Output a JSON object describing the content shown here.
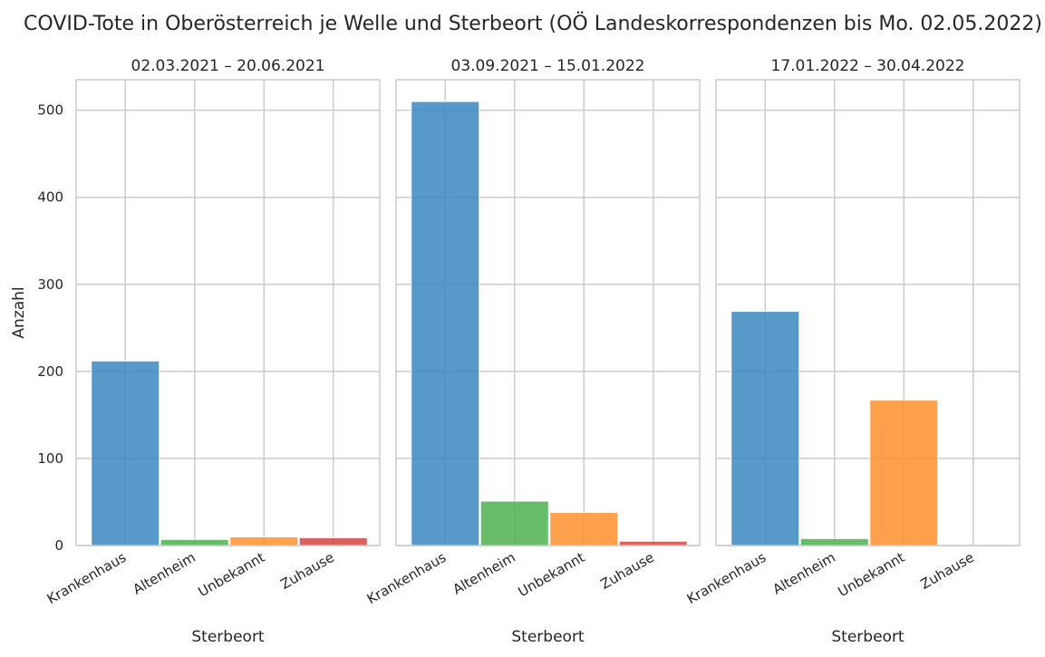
{
  "title": "COVID-Tote in Oberösterreich je Welle und Sterbeort (OÖ Landeskorrespondenzen bis Mo. 02.05.2022)",
  "chart_data": {
    "type": "bar",
    "ylabel": "Anzahl",
    "xlabel": "Sterbeort",
    "ylim": [
      0,
      535
    ],
    "yticks": [
      0,
      100,
      200,
      300,
      400,
      500
    ],
    "grid": true,
    "categories": [
      "Krankenhaus",
      "Altenheim",
      "Unbekannt",
      "Zuhause"
    ],
    "colors": [
      "#3a87c0",
      "#4caf4f",
      "#ff8f2e",
      "#d4463f"
    ],
    "panels": [
      {
        "title": "02.03.2021 – 20.06.2021",
        "values": [
          212,
          7,
          10,
          9
        ]
      },
      {
        "title": "03.09.2021 – 15.01.2022",
        "values": [
          510,
          51,
          38,
          5
        ]
      },
      {
        "title": "17.01.2022 – 30.04.2022",
        "values": [
          269,
          8,
          167,
          0
        ]
      }
    ]
  }
}
